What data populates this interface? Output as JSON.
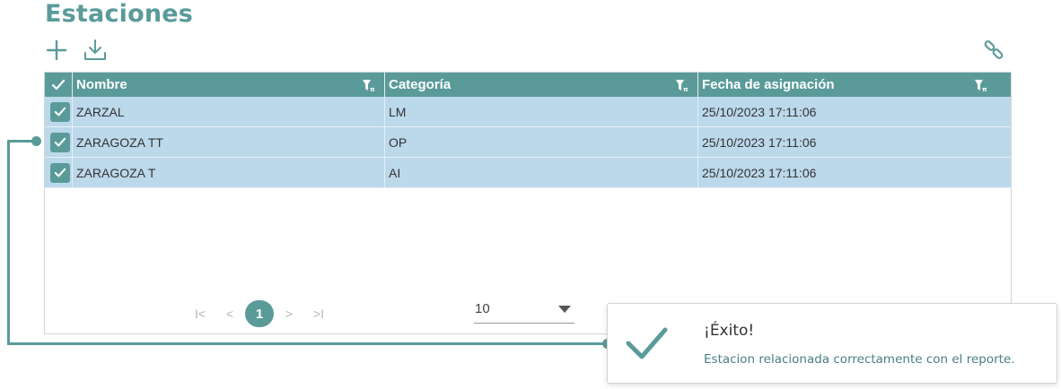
{
  "page": {
    "title": "Estaciones"
  },
  "toolbar": {
    "add_icon": "plus-icon",
    "download_icon": "download-icon",
    "link_icon": "unlink-icon"
  },
  "grid": {
    "columns": [
      {
        "label": "Nombre"
      },
      {
        "label": "Categoría"
      },
      {
        "label": "Fecha de asignación"
      }
    ],
    "rows": [
      {
        "nombre": "ZARZAL",
        "categoria": "LM",
        "fecha": "25/10/2023 17:11:06",
        "selected": true
      },
      {
        "nombre": "ZARAGOZA TT",
        "categoria": "OP",
        "fecha": "25/10/2023 17:11:06",
        "selected": true
      },
      {
        "nombre": "ZARAGOZA T",
        "categoria": "AI",
        "fecha": "25/10/2023 17:11:06",
        "selected": true
      }
    ]
  },
  "pager": {
    "first": "I<",
    "prev": "<",
    "current_page": "1",
    "next": ">",
    "last": ">I",
    "page_size": "10"
  },
  "toast": {
    "title": "¡Éxito!",
    "message": "Estacion relacionada correctamente con el reporte."
  },
  "colors": {
    "accent": "#5a9b9a",
    "selected_row": "#bcd8eb",
    "toast_message": "#4a7f85"
  }
}
